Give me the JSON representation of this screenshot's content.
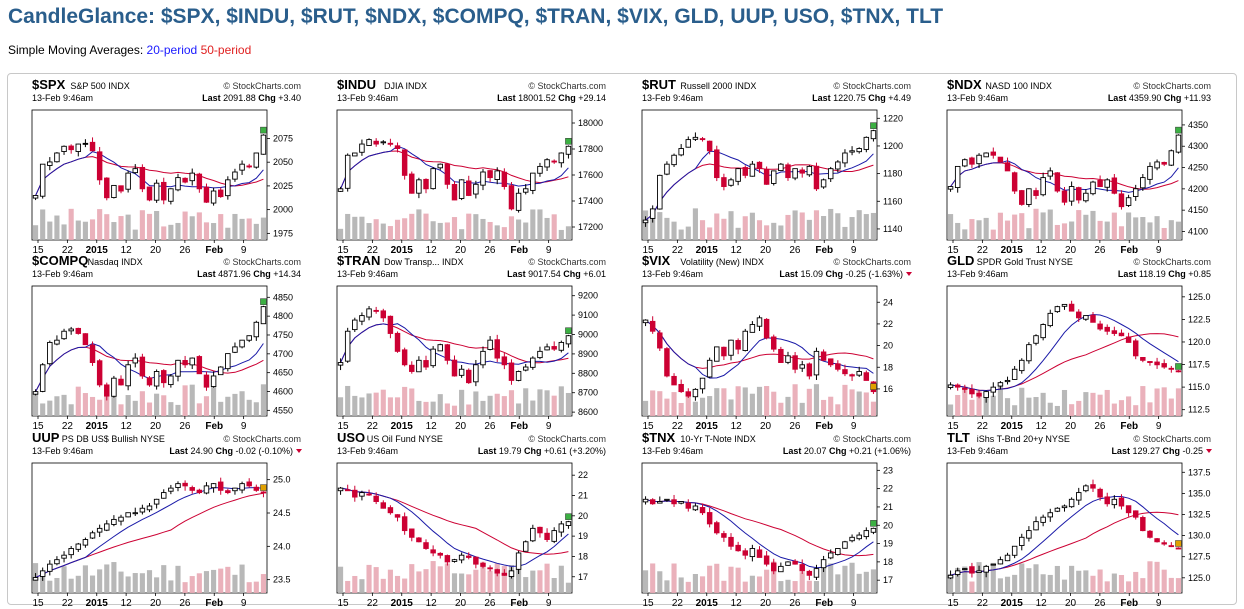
{
  "page": {
    "title": "CandleGlance: $SPX, $INDU, $RUT, $NDX, $COMPQ, $TRAN, $VIX, GLD, UUP, USO, $TNX, TLT",
    "sma_prefix": "Simple Moving Averages:",
    "sma_20": "20-period",
    "sma_50": "50-period"
  },
  "colors": {
    "up": "#000000",
    "down": "#cc0033",
    "sma20": "#1a1aa8",
    "sma50": "#cc0033",
    "vol_up": "#b0b0b0",
    "vol_down": "#e8a8b4",
    "title": "#2a5e8c"
  },
  "chart_data": [
    {
      "type": "candlestick",
      "symbol": "$SPX",
      "name": "S&P 500",
      "exchange": "INDX",
      "watermark": "© StockCharts.com",
      "date": "13-Feb 9:46am",
      "last": "2091.88",
      "chg": "+3.40",
      "chg_dir": "up",
      "x_ticks": [
        "15",
        "22",
        "2015",
        "12",
        "20",
        "26",
        "Feb",
        "9"
      ],
      "y_ticks": [
        "1975",
        "2000",
        "2025",
        "2050",
        "2075"
      ],
      "ylim": [
        1968,
        2105
      ],
      "path": [
        0.34,
        0.62,
        0.64,
        0.72,
        0.78,
        0.75,
        0.8,
        0.8,
        0.74,
        0.48,
        0.32,
        0.43,
        0.38,
        0.54,
        0.58,
        0.4,
        0.3,
        0.45,
        0.3,
        0.4,
        0.5,
        0.46,
        0.54,
        0.4,
        0.28,
        0.38,
        0.33,
        0.48,
        0.55,
        0.62,
        0.6,
        0.72,
        0.88
      ]
    },
    {
      "type": "candlestick",
      "symbol": "$INDU",
      "name": "DJIA",
      "exchange": "INDX",
      "watermark": "© StockCharts.com",
      "date": "13-Feb 9:46am",
      "last": "18001.52",
      "chg": "+29.14",
      "chg_dir": "up",
      "x_ticks": [
        "15",
        "22",
        "2015",
        "12",
        "20",
        "26",
        "Feb",
        "9"
      ],
      "y_ticks": [
        "17200",
        "17400",
        "17600",
        "17800",
        "18000"
      ],
      "ylim": [
        17100,
        18100
      ],
      "path": [
        0.4,
        0.7,
        0.72,
        0.8,
        0.84,
        0.8,
        0.82,
        0.8,
        0.76,
        0.52,
        0.36,
        0.48,
        0.4,
        0.58,
        0.62,
        0.44,
        0.3,
        0.48,
        0.34,
        0.44,
        0.55,
        0.5,
        0.56,
        0.42,
        0.22,
        0.36,
        0.4,
        0.54,
        0.6,
        0.66,
        0.64,
        0.72,
        0.78
      ]
    },
    {
      "type": "candlestick",
      "symbol": "$RUT",
      "name": "Russell 2000",
      "exchange": "INDX",
      "watermark": "© StockCharts.com",
      "date": "13-Feb 9:46am",
      "last": "1220.75",
      "chg": "+4.49",
      "chg_dir": "up",
      "x_ticks": [
        "15",
        "22",
        "2015",
        "12",
        "20",
        "26",
        "Feb",
        "9"
      ],
      "y_ticks": [
        "1140",
        "1160",
        "1180",
        "1200",
        "1220"
      ],
      "ylim": [
        1132,
        1226
      ],
      "path": [
        0.12,
        0.22,
        0.52,
        0.62,
        0.7,
        0.76,
        0.84,
        0.86,
        0.84,
        0.74,
        0.5,
        0.42,
        0.48,
        0.58,
        0.52,
        0.62,
        0.58,
        0.44,
        0.56,
        0.62,
        0.5,
        0.58,
        0.54,
        0.6,
        0.4,
        0.48,
        0.58,
        0.64,
        0.72,
        0.74,
        0.76,
        0.86,
        0.92
      ]
    },
    {
      "type": "candlestick",
      "symbol": "$NDX",
      "name": "NASD 100",
      "exchange": "INDX",
      "watermark": "© StockCharts.com",
      "date": "13-Feb 9:46am",
      "last": "4359.90",
      "chg": "+11.93",
      "chg_dir": "up",
      "x_ticks": [
        "15",
        "22",
        "2015",
        "12",
        "20",
        "26",
        "Feb",
        "9"
      ],
      "y_ticks": [
        "4100",
        "4150",
        "4200",
        "4250",
        "4300",
        "4350"
      ],
      "ylim": [
        4080,
        4385
      ],
      "path": [
        0.42,
        0.6,
        0.66,
        0.62,
        0.7,
        0.72,
        0.7,
        0.64,
        0.56,
        0.38,
        0.26,
        0.4,
        0.34,
        0.5,
        0.56,
        0.38,
        0.28,
        0.42,
        0.3,
        0.36,
        0.46,
        0.42,
        0.48,
        0.36,
        0.24,
        0.32,
        0.4,
        0.5,
        0.6,
        0.64,
        0.62,
        0.74,
        0.88
      ]
    },
    {
      "type": "candlestick",
      "symbol": "$COMPQ",
      "name": "Nasdaq",
      "exchange": "INDX",
      "watermark": "© StockCharts.com",
      "date": "13-Feb 9:46am",
      "last": "4871.96",
      "chg": "+14.34",
      "chg_dir": "up",
      "x_ticks": [
        "15",
        "22",
        "2015",
        "12",
        "20",
        "26",
        "Feb",
        "9"
      ],
      "y_ticks": [
        "4550",
        "4600",
        "4650",
        "4700",
        "4750",
        "4800",
        "4850"
      ],
      "ylim": [
        4535,
        4880
      ],
      "path": [
        0.16,
        0.4,
        0.6,
        0.62,
        0.7,
        0.72,
        0.68,
        0.58,
        0.42,
        0.22,
        0.12,
        0.28,
        0.22,
        0.4,
        0.46,
        0.3,
        0.22,
        0.34,
        0.24,
        0.3,
        0.44,
        0.4,
        0.46,
        0.32,
        0.2,
        0.3,
        0.38,
        0.5,
        0.56,
        0.62,
        0.66,
        0.78,
        0.92
      ]
    },
    {
      "type": "candlestick",
      "symbol": "$TRAN",
      "name": "Dow Transp...",
      "exchange": "INDX",
      "watermark": "© StockCharts.com",
      "date": "13-Feb 9:46am",
      "last": "9017.54",
      "chg": "+6.01",
      "chg_dir": "up",
      "x_ticks": [
        "15",
        "22",
        "2015",
        "12",
        "20",
        "26",
        "Feb",
        "9"
      ],
      "y_ticks": [
        "8600",
        "8700",
        "8800",
        "8900",
        "9000",
        "9100",
        "9200"
      ],
      "ylim": [
        8580,
        9250
      ],
      "path": [
        0.42,
        0.7,
        0.8,
        0.84,
        0.9,
        0.88,
        0.82,
        0.68,
        0.52,
        0.4,
        0.34,
        0.44,
        0.38,
        0.54,
        0.58,
        0.44,
        0.3,
        0.36,
        0.24,
        0.4,
        0.52,
        0.62,
        0.46,
        0.4,
        0.26,
        0.34,
        0.38,
        0.46,
        0.52,
        0.56,
        0.54,
        0.6,
        0.66
      ]
    },
    {
      "type": "candlestick",
      "symbol": "$VIX",
      "name": "Volatility (New)",
      "exchange": "INDX",
      "watermark": "© StockCharts.com",
      "date": "13-Feb 9:46am",
      "last": "15.09",
      "chg": "-0.25 (-1.63%)",
      "chg_dir": "down",
      "x_ticks": [
        "15",
        "22",
        "2015",
        "12",
        "20",
        "26",
        "Feb",
        "9"
      ],
      "y_ticks": [
        "16",
        "18",
        "20",
        "22",
        "24"
      ],
      "ylim": [
        13.5,
        25.5
      ],
      "path": [
        0.8,
        0.7,
        0.55,
        0.3,
        0.22,
        0.16,
        0.12,
        0.18,
        0.28,
        0.44,
        0.56,
        0.48,
        0.62,
        0.54,
        0.7,
        0.76,
        0.82,
        0.64,
        0.54,
        0.42,
        0.48,
        0.36,
        0.4,
        0.3,
        0.52,
        0.44,
        0.4,
        0.36,
        0.32,
        0.3,
        0.34,
        0.26,
        0.16
      ]
    },
    {
      "type": "candlestick",
      "symbol": "GLD",
      "name": "SPDR Gold Trust",
      "exchange": "NYSE",
      "watermark": "© StockCharts.com",
      "date": "13-Feb 9:46am",
      "last": "118.19",
      "chg": "+0.85",
      "chg_dir": "up",
      "x_ticks": [
        "15",
        "22",
        "2015",
        "12",
        "20",
        "26",
        "Feb",
        "9"
      ],
      "y_ticks": [
        "112.5",
        "115.0",
        "117.5",
        "120.0",
        "122.5",
        "125.0"
      ],
      "ylim": [
        111.8,
        126.2
      ],
      "path": [
        0.22,
        0.2,
        0.18,
        0.14,
        0.12,
        0.16,
        0.2,
        0.24,
        0.26,
        0.36,
        0.44,
        0.58,
        0.66,
        0.76,
        0.86,
        0.92,
        0.94,
        0.88,
        0.82,
        0.84,
        0.78,
        0.72,
        0.7,
        0.68,
        0.66,
        0.6,
        0.48,
        0.44,
        0.42,
        0.4,
        0.38,
        0.36,
        0.34
      ]
    },
    {
      "type": "candlestick",
      "symbol": "UUP",
      "name": "PS DB US$ Bullish",
      "exchange": "NYSE",
      "watermark": "© StockCharts.com",
      "date": "13-Feb 9:46am",
      "last": "24.90",
      "chg": "-0.02 (-0.10%)",
      "chg_dir": "down",
      "x_ticks": [
        "15",
        "22",
        "2015",
        "12",
        "20",
        "26",
        "Feb",
        "9"
      ],
      "y_ticks": [
        "23.5",
        "24.0",
        "24.5",
        "25.0"
      ],
      "ylim": [
        23.3,
        25.25
      ],
      "path": [
        0.08,
        0.14,
        0.2,
        0.24,
        0.28,
        0.34,
        0.38,
        0.42,
        0.48,
        0.52,
        0.56,
        0.6,
        0.62,
        0.66,
        0.66,
        0.7,
        0.72,
        0.78,
        0.84,
        0.88,
        0.92,
        0.9,
        0.86,
        0.84,
        0.9,
        0.92,
        0.86,
        0.84,
        0.88,
        0.92,
        0.9,
        0.86,
        0.84
      ]
    },
    {
      "type": "candlestick",
      "symbol": "USO",
      "name": "US Oil Fund",
      "exchange": "NYSE",
      "watermark": "© StockCharts.com",
      "date": "13-Feb 9:46am",
      "last": "19.79",
      "chg": "+0.61 (+3.20%)",
      "chg_dir": "up",
      "x_ticks": [
        "15",
        "22",
        "2015",
        "12",
        "20",
        "26",
        "Feb",
        "9"
      ],
      "y_ticks": [
        "17",
        "18",
        "19",
        "20",
        "21",
        "22"
      ],
      "ylim": [
        16.2,
        22.6
      ],
      "path": [
        0.88,
        0.86,
        0.8,
        0.84,
        0.82,
        0.76,
        0.7,
        0.66,
        0.62,
        0.5,
        0.44,
        0.4,
        0.34,
        0.3,
        0.28,
        0.22,
        0.24,
        0.28,
        0.26,
        0.2,
        0.18,
        0.16,
        0.12,
        0.1,
        0.14,
        0.3,
        0.4,
        0.52,
        0.48,
        0.42,
        0.5,
        0.56,
        0.58
      ]
    },
    {
      "type": "candlestick",
      "symbol": "$TNX",
      "name": "10-Yr T-Note",
      "exchange": "INDX",
      "watermark": "© StockCharts.com",
      "date": "13-Feb 9:46am",
      "last": "20.07",
      "chg": "+0.21 (+1.06%)",
      "chg_dir": "up",
      "x_ticks": [
        "15",
        "22",
        "2015",
        "12",
        "20",
        "26",
        "Feb",
        "9"
      ],
      "y_ticks": [
        "17",
        "18",
        "19",
        "20",
        "21",
        "22",
        "23"
      ],
      "ylim": [
        16.3,
        23.4
      ],
      "path": [
        0.78,
        0.74,
        0.76,
        0.78,
        0.74,
        0.76,
        0.7,
        0.72,
        0.66,
        0.56,
        0.48,
        0.44,
        0.36,
        0.32,
        0.28,
        0.34,
        0.26,
        0.2,
        0.14,
        0.18,
        0.22,
        0.2,
        0.14,
        0.1,
        0.16,
        0.24,
        0.3,
        0.34,
        0.4,
        0.44,
        0.46,
        0.5,
        0.52
      ]
    },
    {
      "type": "candlestick",
      "symbol": "TLT",
      "name": "iShs T-Bnd 20+y",
      "exchange": "NYSE",
      "watermark": "© StockCharts.com",
      "date": "13-Feb 9:46am",
      "last": "129.27",
      "chg": "-0.25",
      "chg_dir": "down",
      "x_ticks": [
        "15",
        "22",
        "2015",
        "12",
        "20",
        "26",
        "Feb",
        "9"
      ],
      "y_ticks": [
        "125.0",
        "127.5",
        "130.0",
        "132.5",
        "135.0",
        "137.5"
      ],
      "ylim": [
        123.2,
        138.6
      ],
      "path": [
        0.1,
        0.14,
        0.16,
        0.12,
        0.14,
        0.18,
        0.2,
        0.24,
        0.28,
        0.36,
        0.44,
        0.5,
        0.58,
        0.62,
        0.66,
        0.7,
        0.72,
        0.78,
        0.84,
        0.9,
        0.88,
        0.8,
        0.74,
        0.78,
        0.72,
        0.66,
        0.62,
        0.5,
        0.44,
        0.4,
        0.38,
        0.36,
        0.34
      ]
    }
  ]
}
